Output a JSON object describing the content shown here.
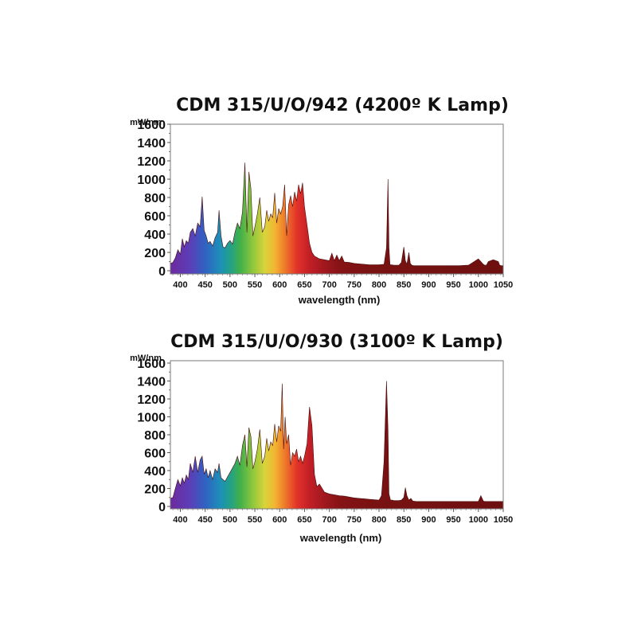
{
  "chart_data": [
    {
      "type": "area",
      "title": "CDM 315/U/O/942 (4200º K Lamp)",
      "ylabel": "mW/nm",
      "xlabel": "wavelength (nm)",
      "xlim": [
        380,
        1050
      ],
      "ylim": [
        0,
        1600
      ],
      "xticks": [
        400,
        450,
        500,
        550,
        600,
        650,
        700,
        750,
        800,
        850,
        900,
        950,
        1000,
        1050
      ],
      "yticks": [
        0,
        200,
        400,
        600,
        800,
        1000,
        1200,
        1400,
        1600
      ],
      "grid": false,
      "series": [
        {
          "x": [
            380,
            385,
            390,
            395,
            400,
            404,
            408,
            412,
            416,
            420,
            425,
            430,
            435,
            440,
            444,
            448,
            452,
            456,
            460,
            465,
            470,
            475,
            478,
            482,
            486,
            490,
            495,
            500,
            505,
            510,
            515,
            520,
            525,
            530,
            534,
            538,
            542,
            546,
            550,
            555,
            560,
            565,
            570,
            574,
            578,
            582,
            586,
            590,
            594,
            598,
            602,
            606,
            610,
            614,
            618,
            622,
            626,
            630,
            634,
            638,
            642,
            646,
            650,
            655,
            660,
            665,
            670,
            680,
            690,
            700,
            705,
            710,
            715,
            720,
            725,
            730,
            740,
            750,
            760,
            770,
            780,
            790,
            800,
            810,
            815,
            818,
            820,
            822,
            825,
            830,
            840,
            845,
            850,
            853,
            856,
            860,
            863,
            866,
            870,
            880,
            890,
            900,
            920,
            940,
            960,
            980,
            1000,
            1010,
            1013,
            1016,
            1020,
            1030,
            1040,
            1043,
            1046,
            1050
          ],
          "values": [
            80,
            90,
            140,
            230,
            180,
            350,
            260,
            330,
            300,
            420,
            460,
            380,
            520,
            480,
            810,
            440,
            380,
            300,
            320,
            270,
            360,
            420,
            660,
            380,
            260,
            250,
            300,
            330,
            290,
            420,
            520,
            460,
            640,
            1180,
            420,
            1080,
            900,
            380,
            480,
            620,
            800,
            420,
            480,
            660,
            540,
            620,
            580,
            850,
            520,
            680,
            620,
            700,
            940,
            380,
            720,
            820,
            700,
            860,
            760,
            940,
            840,
            960,
            700,
            500,
            300,
            200,
            160,
            130,
            120,
            110,
            190,
            110,
            170,
            110,
            160,
            95,
            90,
            80,
            75,
            70,
            65,
            65,
            65,
            70,
            250,
            1000,
            250,
            65,
            65,
            60,
            60,
            90,
            260,
            110,
            70,
            200,
            80,
            60,
            55,
            55,
            55,
            55,
            55,
            55,
            55,
            60,
            130,
            70,
            60,
            60,
            100,
            120,
            100,
            60,
            55,
            55
          ]
        }
      ]
    },
    {
      "type": "area",
      "title": "CDM 315/U/O/930 (3100º K Lamp)",
      "ylabel": "mW/nm",
      "xlabel": "wavelength (nm)",
      "xlim": [
        380,
        1050
      ],
      "ylim": [
        0,
        1600
      ],
      "xticks": [
        400,
        450,
        500,
        550,
        600,
        650,
        700,
        750,
        800,
        850,
        900,
        950,
        1000,
        1050
      ],
      "yticks": [
        0,
        200,
        400,
        600,
        800,
        1000,
        1200,
        1400,
        1600
      ],
      "grid": false,
      "series": [
        {
          "x": [
            380,
            385,
            390,
            395,
            400,
            404,
            408,
            412,
            416,
            420,
            425,
            430,
            435,
            440,
            444,
            448,
            452,
            456,
            460,
            465,
            470,
            475,
            478,
            482,
            486,
            490,
            495,
            500,
            505,
            510,
            515,
            520,
            525,
            530,
            534,
            538,
            542,
            546,
            550,
            555,
            560,
            565,
            570,
            574,
            578,
            582,
            586,
            590,
            594,
            598,
            602,
            605,
            608,
            611,
            614,
            618,
            622,
            626,
            630,
            634,
            638,
            642,
            646,
            650,
            655,
            660,
            665,
            670,
            675,
            680,
            690,
            700,
            710,
            720,
            730,
            740,
            750,
            760,
            770,
            780,
            790,
            800,
            805,
            810,
            812,
            815,
            818,
            820,
            823,
            826,
            830,
            840,
            845,
            850,
            853,
            856,
            860,
            864,
            868,
            875,
            885,
            900,
            950,
            1000,
            1005,
            1010,
            1013,
            1016,
            1020,
            1030,
            1040,
            1050
          ],
          "values": [
            90,
            100,
            200,
            300,
            230,
            320,
            260,
            350,
            300,
            480,
            380,
            560,
            380,
            520,
            560,
            360,
            420,
            320,
            400,
            300,
            420,
            380,
            480,
            320,
            300,
            280,
            330,
            380,
            430,
            480,
            560,
            460,
            680,
            800,
            440,
            880,
            780,
            420,
            500,
            640,
            860,
            480,
            560,
            760,
            620,
            720,
            680,
            920,
            720,
            900,
            840,
            1370,
            640,
            1000,
            700,
            800,
            460,
            600,
            560,
            640,
            500,
            560,
            480,
            560,
            700,
            1110,
            900,
            360,
            220,
            250,
            160,
            140,
            130,
            120,
            115,
            105,
            95,
            90,
            85,
            80,
            75,
            70,
            120,
            500,
            850,
            1400,
            850,
            140,
            70,
            70,
            65,
            65,
            70,
            100,
            210,
            120,
            70,
            90,
            60,
            55,
            55,
            55,
            55,
            55,
            120,
            60,
            55,
            55,
            55,
            55,
            55,
            55
          ]
        }
      ]
    }
  ]
}
